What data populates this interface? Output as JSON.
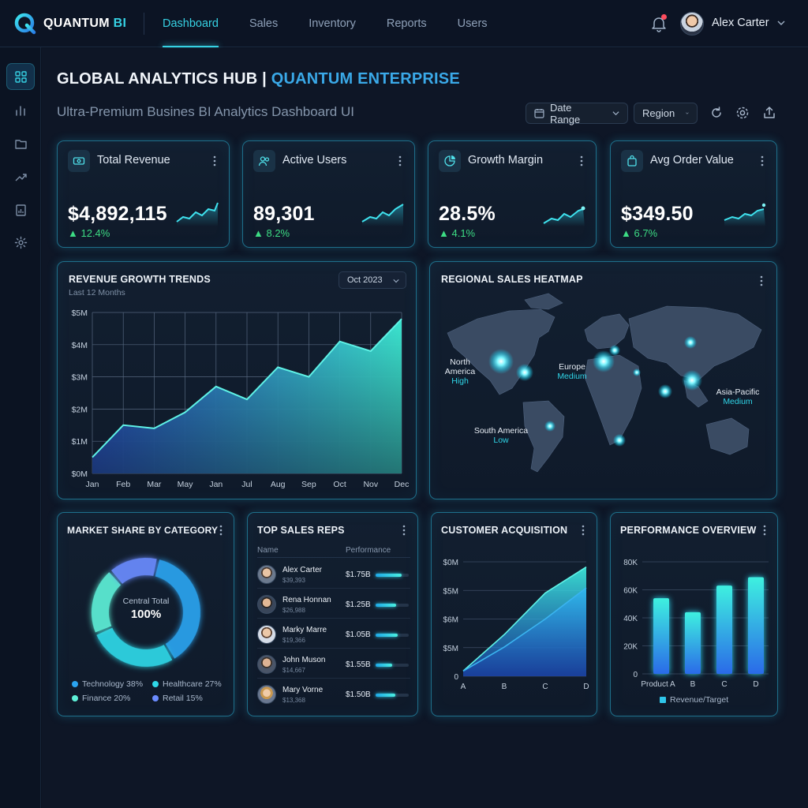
{
  "app": {
    "brand_primary": "QUANTUM",
    "brand_accent": "BI"
  },
  "nav": {
    "tabs": [
      {
        "label": "Dashboard",
        "active": true
      },
      {
        "label": "Sales"
      },
      {
        "label": "Inventory"
      },
      {
        "label": "Reports"
      },
      {
        "label": "Users"
      }
    ]
  },
  "user": {
    "name": "Alex Carter",
    "has_notification": true
  },
  "sidebar": {
    "items": [
      {
        "icon": "grid-icon",
        "active": true
      },
      {
        "icon": "bar-chart-icon"
      },
      {
        "icon": "folder-icon"
      },
      {
        "icon": "trending-up-icon"
      },
      {
        "icon": "report-icon"
      },
      {
        "icon": "gear-icon"
      }
    ]
  },
  "header": {
    "title": "GLOBAL ANALYTICS HUB",
    "title_separator": "|",
    "title_accent": "QUANTUM ENTERPRISE",
    "subtitle": "Ultra-Premium Busines BI Analytics Dashboard UI",
    "date_range_label": "Date Range",
    "region_label": "Region"
  },
  "kpis": [
    {
      "label": "Total Revenue",
      "value": "$4,892,115",
      "change": "▲ 12.4%",
      "icon": "money-icon"
    },
    {
      "label": "Active Users",
      "value": "89,301",
      "change": "▲ 8.2%",
      "icon": "users-icon"
    },
    {
      "label": "Growth Margin",
      "value": "28.5%",
      "change": "▲ 4.1%",
      "icon": "pie-icon"
    },
    {
      "label": "Avg Order Value",
      "value": "$349.50",
      "change": "▲ 6.7%",
      "icon": "bag-icon"
    }
  ],
  "revenue_trends": {
    "title": "REVENUE GROWTH TRENDS",
    "subtitle": "Last 12 Months",
    "selected_month": "Oct 2023"
  },
  "heatmap": {
    "title": "REGIONAL SALES HEATMAP",
    "regions": [
      {
        "name": "North America",
        "level": "High"
      },
      {
        "name": "Europe",
        "level": "Medium"
      },
      {
        "name": "Asia-Pacific",
        "level": "Medium"
      },
      {
        "name": "South America",
        "level": "Low"
      }
    ]
  },
  "market_share": {
    "title": "MARKET SHARE BY CATEGORY",
    "center_label": "Central Total",
    "center_value": "100%",
    "legend": [
      {
        "label": "Technology 38%",
        "color": "#2ba4f0"
      },
      {
        "label": "Healthcare 27%",
        "color": "#2fd8e8"
      },
      {
        "label": "Finance 20%",
        "color": "#5ef0d8"
      },
      {
        "label": "Retail 15%",
        "color": "#6b8cff"
      }
    ]
  },
  "sales_reps": {
    "title": "TOP SALES REPS",
    "col_name": "Name",
    "col_performance": "Performance",
    "rows": [
      {
        "name": "Alex Carter",
        "sub": "$39,393",
        "value": "$1.75B",
        "fill": 0.78
      },
      {
        "name": "Rena Honnan",
        "sub": "$26,988",
        "value": "$1.25B",
        "fill": 0.62
      },
      {
        "name": "Marky Marre",
        "sub": "$19,366",
        "value": "$1.05B",
        "fill": 0.66
      },
      {
        "name": "John Muson",
        "sub": "$14,667",
        "value": "$1.55B",
        "fill": 0.5
      },
      {
        "name": "Mary Vorne",
        "sub": "$13,368",
        "value": "$1.50B",
        "fill": 0.6
      }
    ]
  },
  "customer_acquisition": {
    "title": "CUSTOMER ACQUISITION"
  },
  "performance": {
    "title": "PERFORMANCE OVERVIEW",
    "legend": "Revenue/Target"
  },
  "chart_data": [
    {
      "type": "area",
      "x": [
        "Jan",
        "Feb",
        "Mar",
        "May",
        "Jan",
        "Jul",
        "Aug",
        "Sep",
        "Oct",
        "Nov",
        "Dec"
      ],
      "y_ticks": [
        "$0M",
        "$1M",
        "$2M",
        "$3M",
        "$4M",
        "$5M"
      ],
      "values": [
        0.5,
        1.5,
        1.4,
        1.9,
        2.7,
        2.3,
        3.3,
        3.0,
        4.1,
        3.8,
        4.8
      ],
      "ylim": [
        0,
        5
      ],
      "grid": true
    },
    {
      "type": "pie",
      "labels": [
        "Technology",
        "Healthcare",
        "Finance",
        "Retail"
      ],
      "values": [
        38,
        27,
        20,
        15
      ]
    },
    {
      "type": "area",
      "categories": [
        "A",
        "B",
        "C",
        "D"
      ],
      "y_ticks": [
        "0",
        "$5M",
        "$6M",
        "$5M",
        "$0M"
      ],
      "series": [
        {
          "values": [
            0.05,
            0.4,
            0.8,
            1.05
          ]
        },
        {
          "values": [
            0.05,
            0.28,
            0.55,
            0.85
          ]
        }
      ]
    },
    {
      "type": "bar",
      "categories": [
        "Product A",
        "B",
        "C",
        "D"
      ],
      "y_ticks": [
        "0",
        "20K",
        "40K",
        "60K",
        "80K"
      ],
      "values": [
        54000,
        44000,
        63000,
        69000
      ],
      "ylim": [
        0,
        80000
      ],
      "series_name": "Revenue/Target"
    }
  ]
}
